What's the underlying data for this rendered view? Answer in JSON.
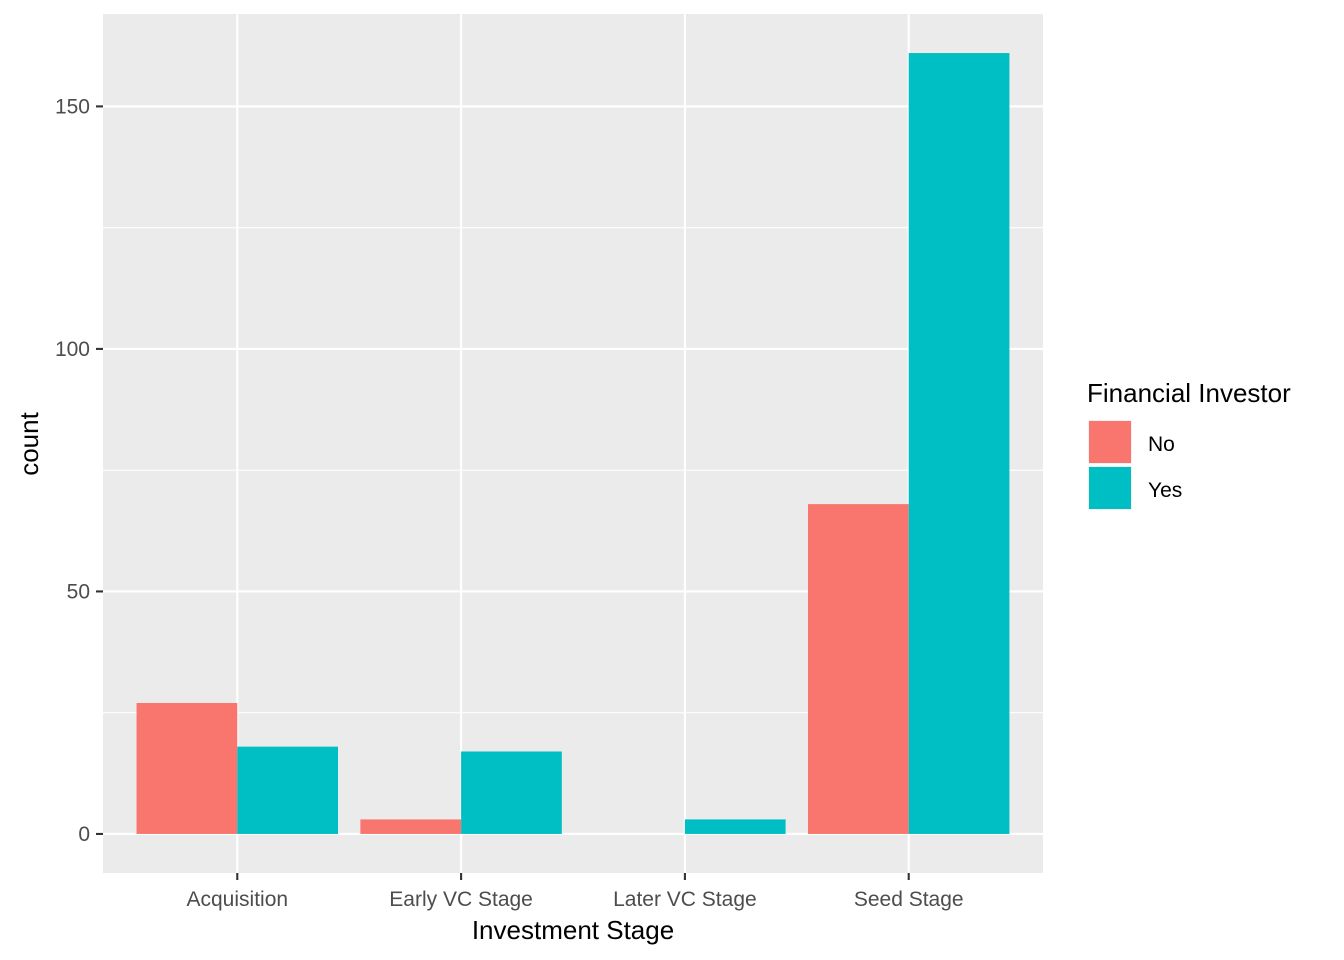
{
  "chart_data": {
    "type": "bar",
    "position": "dodge",
    "categories": [
      "Acquisition",
      "Early VC Stage",
      "Later VC Stage",
      "Seed Stage"
    ],
    "series": [
      {
        "name": "No",
        "color": "#F8766D",
        "values": [
          27,
          3,
          0,
          68
        ]
      },
      {
        "name": "Yes",
        "color": "#00BFC4",
        "values": [
          18,
          17,
          3,
          161
        ]
      }
    ],
    "xlabel": "Investment Stage",
    "ylabel": "count",
    "ylim": [
      -8.05,
      169.05
    ],
    "yticks": [
      0,
      50,
      100,
      150
    ],
    "grid": true,
    "panel_background": "#EBEBEB",
    "gridline_color": "#FFFFFF",
    "legend": {
      "title": "Financial Investor",
      "position": "right"
    }
  }
}
